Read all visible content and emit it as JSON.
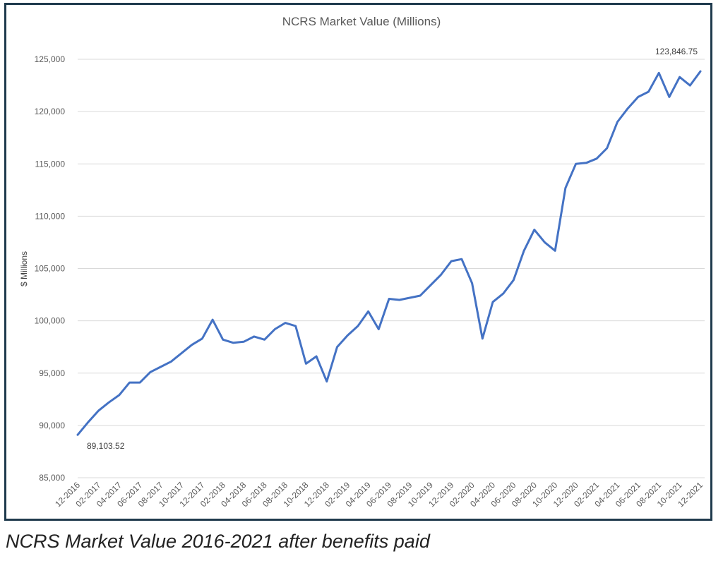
{
  "caption": "NCRS Market Value 2016-2021 after benefits paid",
  "chart_data": {
    "type": "line",
    "title": "NCRS Market Value (Millions)",
    "xlabel": "",
    "ylabel": "$ Millions",
    "ylim": [
      85000,
      125000
    ],
    "yticks": [
      "85,000",
      "90,000",
      "95,000",
      "100,000",
      "105,000",
      "110,000",
      "115,000",
      "120,000",
      "125,000"
    ],
    "grid": true,
    "legend": "none",
    "line_color": "#4472c4",
    "x_tick_labels": [
      "12-2016",
      "02-2017",
      "04-2017",
      "06-2017",
      "08-2017",
      "10-2017",
      "12-2017",
      "02-2018",
      "04-2018",
      "06-2018",
      "08-2018",
      "10-2018",
      "12-2018",
      "02-2019",
      "04-2019",
      "06-2019",
      "08-2019",
      "10-2019",
      "12-2019",
      "02-2020",
      "04-2020",
      "06-2020",
      "08-2020",
      "10-2020",
      "12-2020",
      "02-2021",
      "04-2021",
      "06-2021",
      "08-2021",
      "10-2021",
      "12-2021"
    ],
    "x": [
      "12-2016",
      "01-2017",
      "02-2017",
      "03-2017",
      "04-2017",
      "05-2017",
      "06-2017",
      "07-2017",
      "08-2017",
      "09-2017",
      "10-2017",
      "11-2017",
      "12-2017",
      "01-2018",
      "02-2018",
      "03-2018",
      "04-2018",
      "05-2018",
      "06-2018",
      "07-2018",
      "08-2018",
      "09-2018",
      "10-2018",
      "11-2018",
      "12-2018",
      "01-2019",
      "02-2019",
      "03-2019",
      "04-2019",
      "05-2019",
      "06-2019",
      "07-2019",
      "08-2019",
      "09-2019",
      "10-2019",
      "11-2019",
      "12-2019",
      "01-2020",
      "02-2020",
      "03-2020",
      "04-2020",
      "05-2020",
      "06-2020",
      "07-2020",
      "08-2020",
      "09-2020",
      "10-2020",
      "11-2020",
      "12-2020",
      "01-2021",
      "02-2021",
      "03-2021",
      "04-2021",
      "05-2021",
      "06-2021",
      "07-2021",
      "08-2021",
      "09-2021",
      "10-2021",
      "11-2021",
      "12-2021"
    ],
    "series": [
      {
        "values": [
          89103.52,
          90300,
          91400,
          92200,
          92900,
          94100,
          94100,
          95100,
          95600,
          96100,
          96900,
          97700,
          98300,
          100100,
          98200,
          97900,
          98000,
          98500,
          98200,
          99200,
          99800,
          99500,
          95900,
          96600,
          94200,
          97500,
          98600,
          99500,
          100900,
          99200,
          102100,
          102000,
          102200,
          102400,
          103400,
          104400,
          105700,
          105900,
          103600,
          98300,
          101800,
          102600,
          103900,
          106700,
          108700,
          107500,
          106700,
          112700,
          115000,
          115100,
          115500,
          116500,
          119000,
          120300,
          121400,
          121900,
          123700,
          121400,
          123300,
          122500,
          123846.75
        ]
      }
    ],
    "annotations": [
      "89,103.52",
      "123,846.75"
    ]
  }
}
